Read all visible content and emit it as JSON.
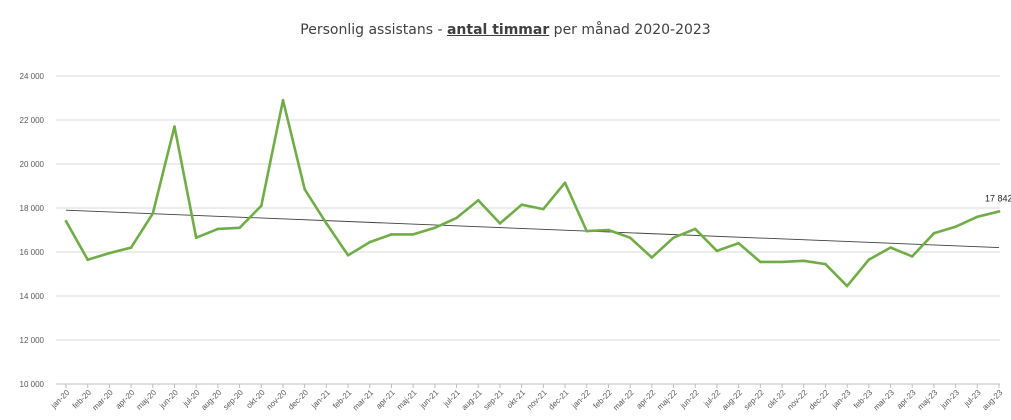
{
  "chart_data": {
    "type": "line",
    "title": {
      "prefix": "Personlig assistans - ",
      "emphasis": "antal timmar",
      "suffix": " per månad 2020-2023"
    },
    "xlabel": "",
    "ylabel": "",
    "ylim": [
      10000,
      24000
    ],
    "yticks": [
      10000,
      12000,
      14000,
      16000,
      18000,
      20000,
      22000,
      24000
    ],
    "ytick_labels": [
      "10 000",
      "12 000",
      "14 000",
      "16 000",
      "18 000",
      "20 000",
      "22 000",
      "24 000"
    ],
    "grid": true,
    "legend": "none",
    "categories": [
      "jan-20",
      "feb-20",
      "mar-20",
      "apr-20",
      "maj-20",
      "jun-20",
      "jul-20",
      "aug-20",
      "sep-20",
      "okt-20",
      "nov-20",
      "dec-20",
      "jan-21",
      "feb-21",
      "mar-21",
      "apr-21",
      "maj-21",
      "jun-21",
      "jul-21",
      "aug-21",
      "sep-21",
      "okt-21",
      "nov-21",
      "dec-21",
      "jan-22",
      "feb-22",
      "mar-22",
      "apr-22",
      "maj-22",
      "jun-22",
      "jul-22",
      "aug-22",
      "sep-22",
      "okt-22",
      "nov-22",
      "dec-22",
      "jan-23",
      "feb-23",
      "mar-23",
      "apr-23",
      "maj-23",
      "jun-23",
      "jul-23",
      "aug-23"
    ],
    "series": [
      {
        "color": "#70ad47",
        "values": [
          17400,
          15650,
          15950,
          16200,
          17750,
          21700,
          16650,
          17050,
          17100,
          18100,
          22900,
          18850,
          17300,
          15850,
          16450,
          16800,
          16800,
          17100,
          17550,
          18350,
          17300,
          18150,
          17950,
          19150,
          16950,
          17000,
          16650,
          15750,
          16650,
          17050,
          16050,
          16400,
          15550,
          15550,
          15600,
          15450,
          14450,
          15650,
          16200,
          15800,
          16850,
          17150,
          17600,
          17842
        ]
      }
    ],
    "trendline": {
      "color": "#404040",
      "start": 17900,
      "end": 16200
    },
    "annotations": [
      {
        "category": "aug-23",
        "text": "17 842"
      }
    ]
  }
}
